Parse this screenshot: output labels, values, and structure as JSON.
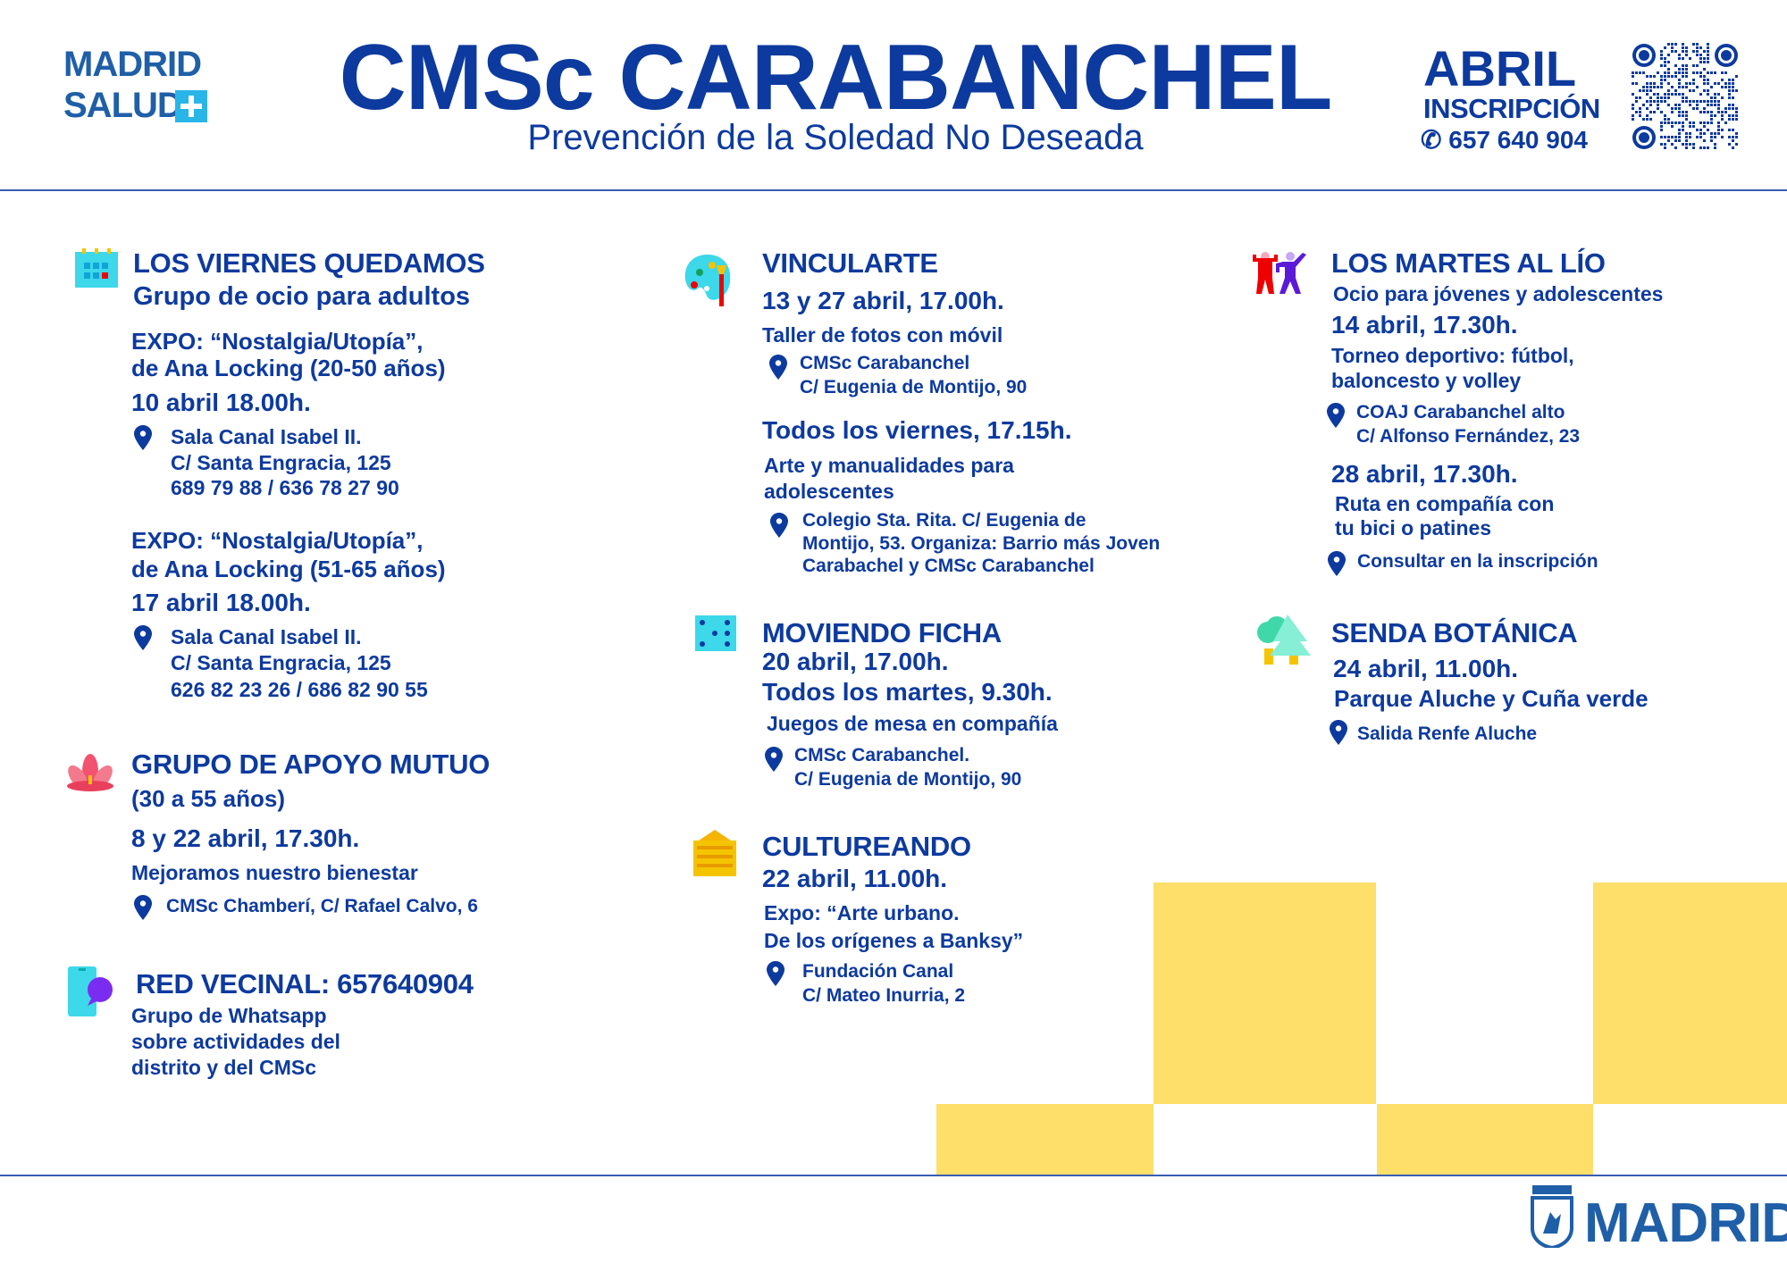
{
  "brand": {
    "logo_line1": "MADRID",
    "logo_line2": "SALUD",
    "footer_logo": "MADRID"
  },
  "header": {
    "title": "CMSc CARABANCHEL",
    "subtitle": "Prevención de la Soledad No Deseada",
    "month": "ABRIL",
    "registration_label": "INSCRIPCIÓN",
    "phone": "657 640 904"
  },
  "colors": {
    "primary": "#0d3a9e",
    "accent_yellow": "#fddf6a",
    "cyan": "#3dd8ea"
  },
  "viernes": {
    "icon": "calendar-icon",
    "title": "LOS VIERNES QUEDAMOS",
    "subtitle": "Grupo de ocio para adultos",
    "events": [
      {
        "l1": "EXPO: “Nostalgia/Utopía”,",
        "l2": "de Ana Locking (20-50 años)",
        "date": "10 abril 18.00h.",
        "addr": [
          "Sala Canal Isabel II.",
          "C/ Santa Engracia, 125",
          "689 79 88 / 636 78 27 90"
        ]
      },
      {
        "l1": "EXPO: “Nostalgia/Utopía”,",
        "l2": "de Ana Locking (51-65 años)",
        "date": "17 abril 18.00h.",
        "addr": [
          "Sala Canal Isabel II.",
          "C/ Santa Engracia, 125",
          "626 82 23 26 / 686 82 90 55"
        ]
      }
    ]
  },
  "apoyo": {
    "icon": "lotus-icon",
    "title": "GRUPO DE APOYO MUTUO",
    "subtitle": "(30 a 55 años)",
    "date": "8 y 22 abril, 17.30h.",
    "desc": "Mejoramos nuestro bienestar",
    "addr": "CMSc Chamberí, C/ Rafael Calvo, 6"
  },
  "red": {
    "icon": "chat-phone-icon",
    "title": "RED VECINAL: 657640904",
    "desc": [
      "Grupo de Whatsapp",
      "sobre actividades del",
      "distrito y del CMSc"
    ]
  },
  "vincularte": {
    "icon": "palette-icon",
    "title": "VINCULARTE",
    "date1": "13 y 27 abril, 17.00h.",
    "desc1": "Taller de fotos con móvil",
    "addr1": [
      "CMSc Carabanchel",
      "C/ Eugenia de Montijo, 90"
    ],
    "date2": "Todos los viernes, 17.15h.",
    "desc2": [
      "Arte y manualidades para",
      "adolescentes"
    ],
    "addr2": [
      "Colegio Sta. Rita. C/ Eugenia de",
      "Montijo, 53. Organiza: Barrio más Joven",
      "Carabachel y CMSc Carabanchel"
    ]
  },
  "ficha": {
    "icon": "dice-icon",
    "title": "MOVIENDO FICHA",
    "date1": "20 abril, 17.00h.",
    "date2": "Todos los martes, 9.30h.",
    "desc": "Juegos de mesa en compañía",
    "addr": [
      "CMSc Carabanchel.",
      "C/ Eugenia de Montijo, 90"
    ]
  },
  "cultureando": {
    "icon": "building-icon",
    "title": "CULTUREANDO",
    "date": "22 abril, 11.00h.",
    "desc": [
      "Expo: “Arte urbano.",
      "De los orígenes a Banksy”"
    ],
    "addr": [
      "Fundación Canal",
      "C/ Mateo Inurria, 2"
    ]
  },
  "martes": {
    "icon": "people-dancing-icon",
    "title": "LOS MARTES AL LÍO",
    "subtitle": "Ocio para jóvenes y adolescentes",
    "date1": "14 abril, 17.30h.",
    "desc1": [
      "Torneo deportivo: fútbol,",
      "baloncesto y volley"
    ],
    "addr1": [
      "COAJ Carabanchel alto",
      "C/ Alfonso Fernández, 23"
    ],
    "date2": "28 abril, 17.30h.",
    "desc2": [
      "Ruta en compañía con",
      "tu bici o patines"
    ],
    "addr2": "Consultar en la inscripción"
  },
  "senda": {
    "icon": "trees-icon",
    "title": "SENDA BOTÁNICA",
    "date": "24 abril, 11.00h.",
    "desc": "Parque Aluche y Cuña verde",
    "addr": "Salida Renfe Aluche"
  }
}
